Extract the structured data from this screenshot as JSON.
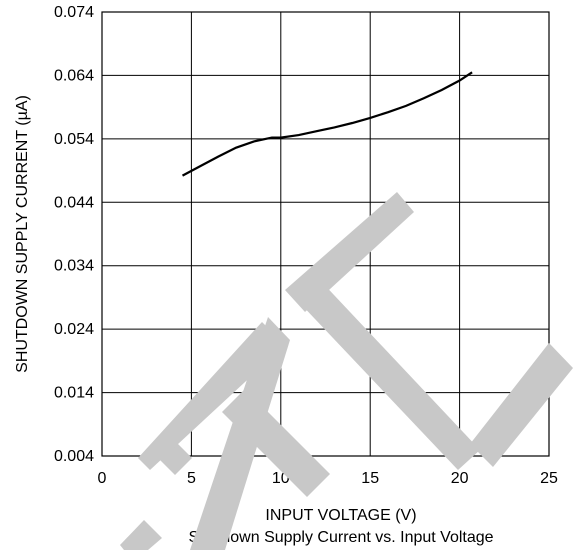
{
  "chart_data": {
    "type": "line",
    "title": "Shutdown Supply Current vs. Input Voltage",
    "xlabel": "INPUT VOLTAGE (V)",
    "ylabel": "SHUTDOWN SUPPLY CURRENT (µA)",
    "xlim": [
      0,
      25
    ],
    "ylim": [
      0.004,
      0.074
    ],
    "x_ticks": [
      "0",
      "5",
      "10",
      "15",
      "20",
      "25"
    ],
    "y_ticks": [
      "0.004",
      "0.014",
      "0.024",
      "0.034",
      "0.044",
      "0.054",
      "0.064",
      "0.074"
    ],
    "grid": true,
    "series": [
      {
        "x": [
          4.5,
          5.5,
          6.5,
          7.5,
          8.5,
          9.5,
          10.0,
          11.0,
          12.0,
          13.0,
          14.0,
          15.0,
          16.0,
          17.0,
          18.0,
          19.0,
          20.0,
          20.7
        ],
        "y": [
          0.0482,
          0.0497,
          0.0512,
          0.0526,
          0.0536,
          0.0542,
          0.0542,
          0.0546,
          0.0552,
          0.0558,
          0.0565,
          0.0573,
          0.0582,
          0.0592,
          0.0604,
          0.0617,
          0.0632,
          0.0645
        ]
      }
    ]
  },
  "watermark": {
    "color": "#c8c8c8"
  }
}
